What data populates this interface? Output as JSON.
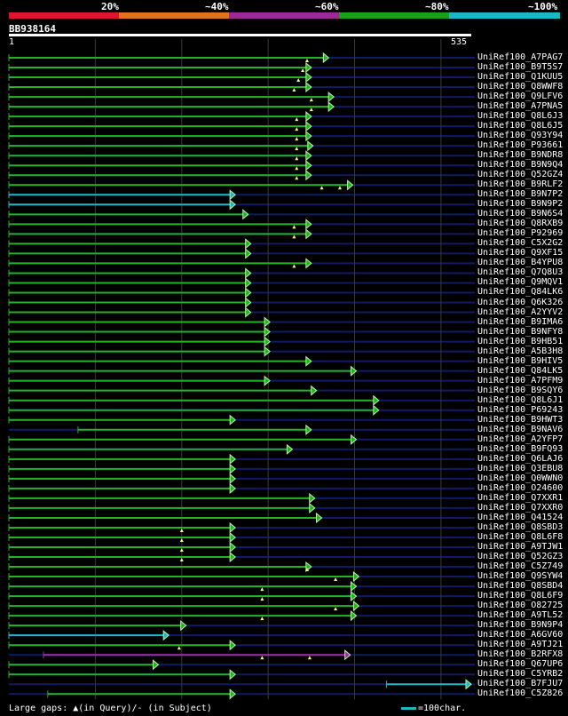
{
  "legend": {
    "bands": [
      {
        "label": "20%",
        "color": "#e0142c"
      },
      {
        "label": "~40%",
        "color": "#e07318"
      },
      {
        "label": "~60%",
        "color": "#9c2a96"
      },
      {
        "label": "~80%",
        "color": "#18a018"
      },
      {
        "label": "~100%",
        "color": "#1bb8c4"
      }
    ]
  },
  "query": {
    "id": "BB938164",
    "start": "1",
    "end": "535",
    "length": 535
  },
  "colors": {
    "green": "#22b422",
    "cyan": "#1bb8c4",
    "magenta": "#a02ca6",
    "track": "#101a66",
    "grid": "#3a3a3a",
    "arrow": "#b8f5a0",
    "gap": "#f5f57a"
  },
  "hits": [
    {
      "label": "UniRef100_A7PAG7",
      "color": "green",
      "start": 0,
      "end": 370,
      "gaps": [
        345
      ]
    },
    {
      "label": "UniRef100_B9T5S7",
      "color": "green",
      "start": 0,
      "end": 350,
      "gaps": [
        340
      ]
    },
    {
      "label": "UniRef100_Q1KUU5",
      "color": "green",
      "start": 0,
      "end": 350,
      "gaps": [
        335
      ]
    },
    {
      "label": "UniRef100_Q8WWF8",
      "color": "green",
      "start": 0,
      "end": 350,
      "gaps": [
        330
      ]
    },
    {
      "label": "UniRef100_Q9LFV6",
      "color": "green",
      "start": 0,
      "end": 376,
      "gaps": [
        350
      ]
    },
    {
      "label": "UniRef100_A7PNA5",
      "color": "green",
      "start": 0,
      "end": 376,
      "gaps": [
        350
      ]
    },
    {
      "label": "UniRef100_Q8L6J3",
      "color": "green",
      "start": 0,
      "end": 350,
      "gaps": [
        333
      ]
    },
    {
      "label": "UniRef100_Q8L6J5",
      "color": "green",
      "start": 0,
      "end": 350,
      "gaps": [
        333
      ]
    },
    {
      "label": "UniRef100_Q93Y94",
      "color": "green",
      "start": 0,
      "end": 350,
      "gaps": [
        333
      ]
    },
    {
      "label": "UniRef100_P93661",
      "color": "green",
      "start": 0,
      "end": 352,
      "gaps": [
        333
      ]
    },
    {
      "label": "UniRef100_B9NDR8",
      "color": "green",
      "start": 0,
      "end": 350,
      "gaps": [
        333
      ]
    },
    {
      "label": "UniRef100_B9N9Q4",
      "color": "green",
      "start": 0,
      "end": 350,
      "gaps": [
        333
      ]
    },
    {
      "label": "UniRef100_Q52GZ4",
      "color": "green",
      "start": 0,
      "end": 350,
      "gaps": [
        333
      ]
    },
    {
      "label": "UniRef100_B9RLF2",
      "color": "green",
      "start": 0,
      "end": 398,
      "gaps": [
        362,
        383
      ]
    },
    {
      "label": "UniRef100_B9N7P2",
      "color": "cyan",
      "start": 0,
      "end": 262,
      "gaps": []
    },
    {
      "label": "UniRef100_B9N9P2",
      "color": "cyan",
      "start": 0,
      "end": 262,
      "gaps": []
    },
    {
      "label": "UniRef100_B9N6S4",
      "color": "green",
      "start": 0,
      "end": 277,
      "gaps": []
    },
    {
      "label": "UniRef100_Q8RXB9",
      "color": "green",
      "start": 0,
      "end": 350,
      "gaps": [
        330
      ]
    },
    {
      "label": "UniRef100_P92969",
      "color": "green",
      "start": 0,
      "end": 350,
      "gaps": [
        330
      ]
    },
    {
      "label": "UniRef100_C5X2G2",
      "color": "green",
      "start": 0,
      "end": 280,
      "gaps": []
    },
    {
      "label": "UniRef100_Q9XF15",
      "color": "green",
      "start": 0,
      "end": 280,
      "gaps": []
    },
    {
      "label": "UniRef100_B4YPU8",
      "color": "green",
      "start": 0,
      "end": 350,
      "gaps": [
        330
      ]
    },
    {
      "label": "UniRef100_Q7Q8U3",
      "color": "green",
      "start": 0,
      "end": 280,
      "gaps": []
    },
    {
      "label": "UniRef100_Q9MQV1",
      "color": "green",
      "start": 0,
      "end": 280,
      "gaps": []
    },
    {
      "label": "UniRef100_Q84LK6",
      "color": "green",
      "start": 0,
      "end": 280,
      "gaps": []
    },
    {
      "label": "UniRef100_Q6K326",
      "color": "green",
      "start": 0,
      "end": 280,
      "gaps": []
    },
    {
      "label": "UniRef100_A2YYV2",
      "color": "green",
      "start": 0,
      "end": 280,
      "gaps": []
    },
    {
      "label": "UniRef100_B9IMA6",
      "color": "green",
      "start": 0,
      "end": 302,
      "gaps": []
    },
    {
      "label": "UniRef100_B9NFY8",
      "color": "green",
      "start": 0,
      "end": 302,
      "gaps": []
    },
    {
      "label": "UniRef100_B9HB51",
      "color": "green",
      "start": 0,
      "end": 302,
      "gaps": []
    },
    {
      "label": "UniRef100_A5B3H8",
      "color": "green",
      "start": 0,
      "end": 302,
      "gaps": []
    },
    {
      "label": "UniRef100_B9HIV5",
      "color": "green",
      "start": 0,
      "end": 350,
      "gaps": []
    },
    {
      "label": "UniRef100_Q84LK5",
      "color": "green",
      "start": 0,
      "end": 402,
      "gaps": []
    },
    {
      "label": "UniRef100_A7PFM9",
      "color": "green",
      "start": 0,
      "end": 302,
      "gaps": []
    },
    {
      "label": "UniRef100_B9SQY6",
      "color": "green",
      "start": 0,
      "end": 356,
      "gaps": []
    },
    {
      "label": "UniRef100_Q8L6J1",
      "color": "green",
      "start": 0,
      "end": 428,
      "gaps": []
    },
    {
      "label": "UniRef100_P69243",
      "color": "green",
      "start": 0,
      "end": 428,
      "gaps": []
    },
    {
      "label": "UniRef100_B9HWT3",
      "color": "green",
      "start": 0,
      "end": 262,
      "gaps": []
    },
    {
      "label": "UniRef100_B9NAV6",
      "color": "green",
      "start": 80,
      "end": 350,
      "gaps": []
    },
    {
      "label": "UniRef100_A2YFP7",
      "color": "green",
      "start": 0,
      "end": 402,
      "gaps": []
    },
    {
      "label": "UniRef100_B9FQ93",
      "color": "green",
      "start": 0,
      "end": 328,
      "gaps": []
    },
    {
      "label": "UniRef100_Q6LAJ6",
      "color": "green",
      "start": 0,
      "end": 262,
      "gaps": []
    },
    {
      "label": "UniRef100_Q3EBU8",
      "color": "green",
      "start": 0,
      "end": 262,
      "gaps": []
    },
    {
      "label": "UniRef100_Q0WWN0",
      "color": "green",
      "start": 0,
      "end": 262,
      "gaps": []
    },
    {
      "label": "UniRef100_O24600",
      "color": "green",
      "start": 0,
      "end": 262,
      "gaps": []
    },
    {
      "label": "UniRef100_Q7XXR1",
      "color": "green",
      "start": 0,
      "end": 354,
      "gaps": []
    },
    {
      "label": "UniRef100_Q7XXR0",
      "color": "green",
      "start": 0,
      "end": 354,
      "gaps": []
    },
    {
      "label": "UniRef100_Q41524",
      "color": "green",
      "start": 0,
      "end": 362,
      "gaps": []
    },
    {
      "label": "UniRef100_Q8SBD3",
      "color": "green",
      "start": 0,
      "end": 262,
      "gaps": [
        200
      ]
    },
    {
      "label": "UniRef100_Q8L6F8",
      "color": "green",
      "start": 0,
      "end": 262,
      "gaps": [
        200
      ]
    },
    {
      "label": "UniRef100_A9TJW1",
      "color": "green",
      "start": 0,
      "end": 262,
      "gaps": [
        200
      ]
    },
    {
      "label": "UniRef100_Q52GZ3",
      "color": "green",
      "start": 0,
      "end": 262,
      "gaps": [
        200
      ]
    },
    {
      "label": "UniRef100_C5Z749",
      "color": "green",
      "start": 0,
      "end": 350,
      "gaps": [
        345
      ]
    },
    {
      "label": "UniRef100_Q9SYW4",
      "color": "green",
      "start": 0,
      "end": 405,
      "gaps": [
        378
      ]
    },
    {
      "label": "UniRef100_Q8SBD4",
      "color": "green",
      "start": 0,
      "end": 402,
      "gaps": [
        293
      ]
    },
    {
      "label": "UniRef100_Q8L6F9",
      "color": "green",
      "start": 0,
      "end": 402,
      "gaps": [
        293
      ]
    },
    {
      "label": "UniRef100_O82725",
      "color": "green",
      "start": 0,
      "end": 405,
      "gaps": [
        378
      ]
    },
    {
      "label": "UniRef100_A9TL52",
      "color": "green",
      "start": 0,
      "end": 402,
      "gaps": [
        293
      ]
    },
    {
      "label": "UniRef100_B9N9P4",
      "color": "green",
      "start": 0,
      "end": 205,
      "gaps": []
    },
    {
      "label": "UniRef100_A6GV60",
      "color": "cyan",
      "start": 0,
      "end": 185,
      "gaps": []
    },
    {
      "label": "UniRef100_A9TJ21",
      "color": "green",
      "start": 0,
      "end": 262,
      "gaps": [
        197
      ]
    },
    {
      "label": "UniRef100_B2RFX8",
      "color": "magenta",
      "start": 40,
      "end": 395,
      "gaps": [
        293,
        348
      ]
    },
    {
      "label": "UniRef100_Q67UP6",
      "color": "green",
      "start": 0,
      "end": 173,
      "gaps": []
    },
    {
      "label": "UniRef100_C5YRB2",
      "color": "green",
      "start": 0,
      "end": 262,
      "gaps": []
    },
    {
      "label": "UniRef100_B7FJU7",
      "color": "cyan",
      "start": 437,
      "end": 535,
      "gaps": []
    },
    {
      "label": "UniRef100_C5Z826",
      "color": "green",
      "start": 45,
      "end": 262,
      "gaps": []
    }
  ],
  "footer": {
    "gaps_text": "Large gaps: ▲(in Query)/- (in Subject)",
    "scale_text": "=100char."
  }
}
